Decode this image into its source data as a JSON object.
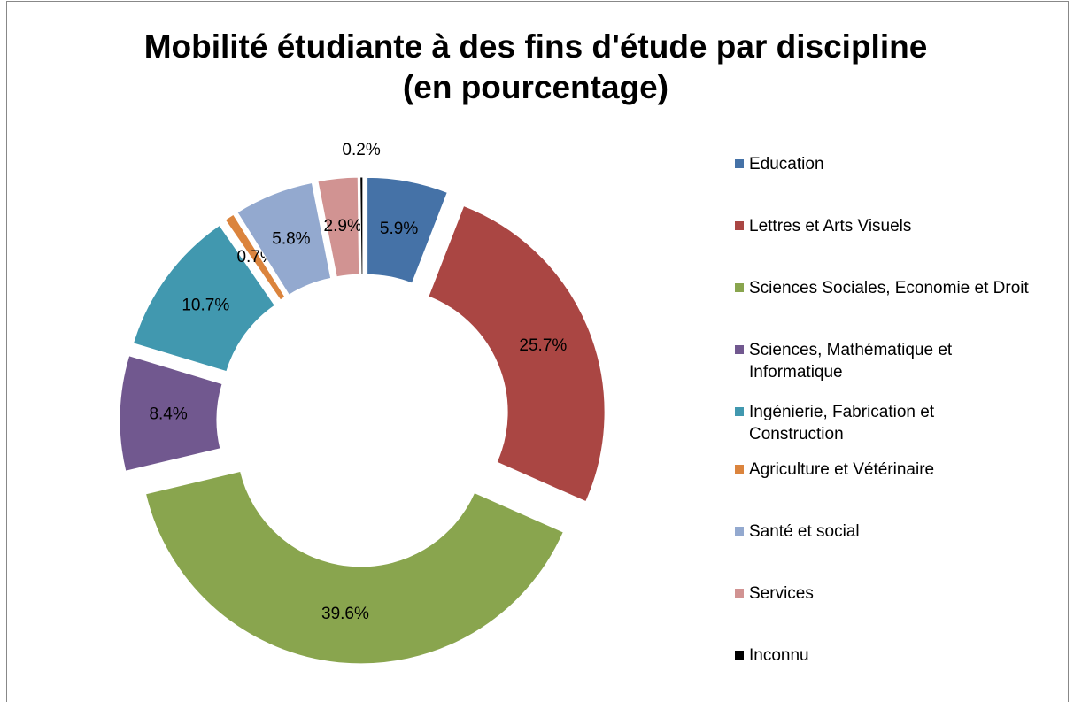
{
  "chart_data": {
    "type": "donut",
    "title": "Mobilité étudiante à des fins d'étude par discipline (en pourcentage)",
    "categories": [
      "Education",
      "Lettres et Arts Visuels",
      "Sciences Sociales, Economie et Droit",
      "Sciences, Mathématique et Informatique",
      "Ingénierie, Fabrication et Construction",
      "Agriculture et Vétérinaire",
      "Santé et social",
      "Services",
      "Inconnu"
    ],
    "values": [
      5.9,
      25.7,
      39.6,
      8.4,
      10.7,
      0.7,
      5.8,
      2.9,
      0.2
    ],
    "value_labels": [
      "5.9%",
      "25.7%",
      "39.6%",
      "8.4%",
      "10.7%",
      "0.7%",
      "5.8%",
      "2.9%",
      "0.2%"
    ],
    "colors": [
      "#4572A7",
      "#AA4643",
      "#89A54E",
      "#71588F",
      "#4198AF",
      "#DB843D",
      "#93A9CF",
      "#D19392",
      "#000000"
    ],
    "legend": "right"
  }
}
